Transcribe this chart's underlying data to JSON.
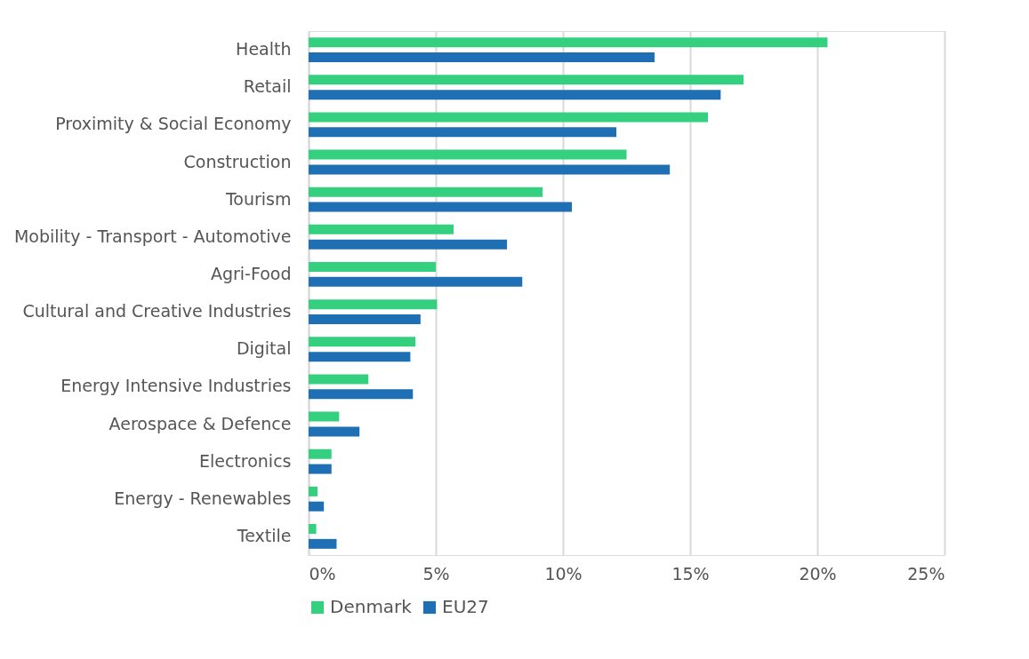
{
  "chart_data": {
    "type": "bar",
    "orientation": "horizontal",
    "categories": [
      "Health",
      "Retail",
      "Proximity & Social Economy",
      "Construction",
      "Tourism",
      "Mobility - Transport - Automotive",
      "Agri-Food",
      "Cultural and Creative Industries",
      "Digital",
      "Energy Intensive Industries",
      "Aerospace & Defence",
      "Electronics",
      "Energy - Renewables",
      "Textile"
    ],
    "series": [
      {
        "name": "Denmark",
        "color": "#35d07f",
        "values": [
          20.4,
          17.1,
          15.7,
          12.5,
          9.2,
          5.7,
          5.0,
          5.05,
          4.2,
          2.35,
          1.2,
          0.9,
          0.35,
          0.3
        ]
      },
      {
        "name": "EU27",
        "color": "#1f6fb4",
        "values": [
          13.6,
          16.2,
          12.1,
          14.2,
          10.35,
          7.8,
          8.4,
          4.4,
          4.0,
          4.1,
          2.0,
          0.9,
          0.6,
          1.1
        ]
      }
    ],
    "xlim": [
      0,
      25
    ],
    "xticks": [
      {
        "value": 0,
        "label": "0%"
      },
      {
        "value": 5,
        "label": "5%"
      },
      {
        "value": 10,
        "label": "10%"
      },
      {
        "value": 15,
        "label": "15%"
      },
      {
        "value": 20,
        "label": "20%"
      },
      {
        "value": 25,
        "label": "25%"
      }
    ],
    "grid": "x",
    "legend": "bottom"
  }
}
